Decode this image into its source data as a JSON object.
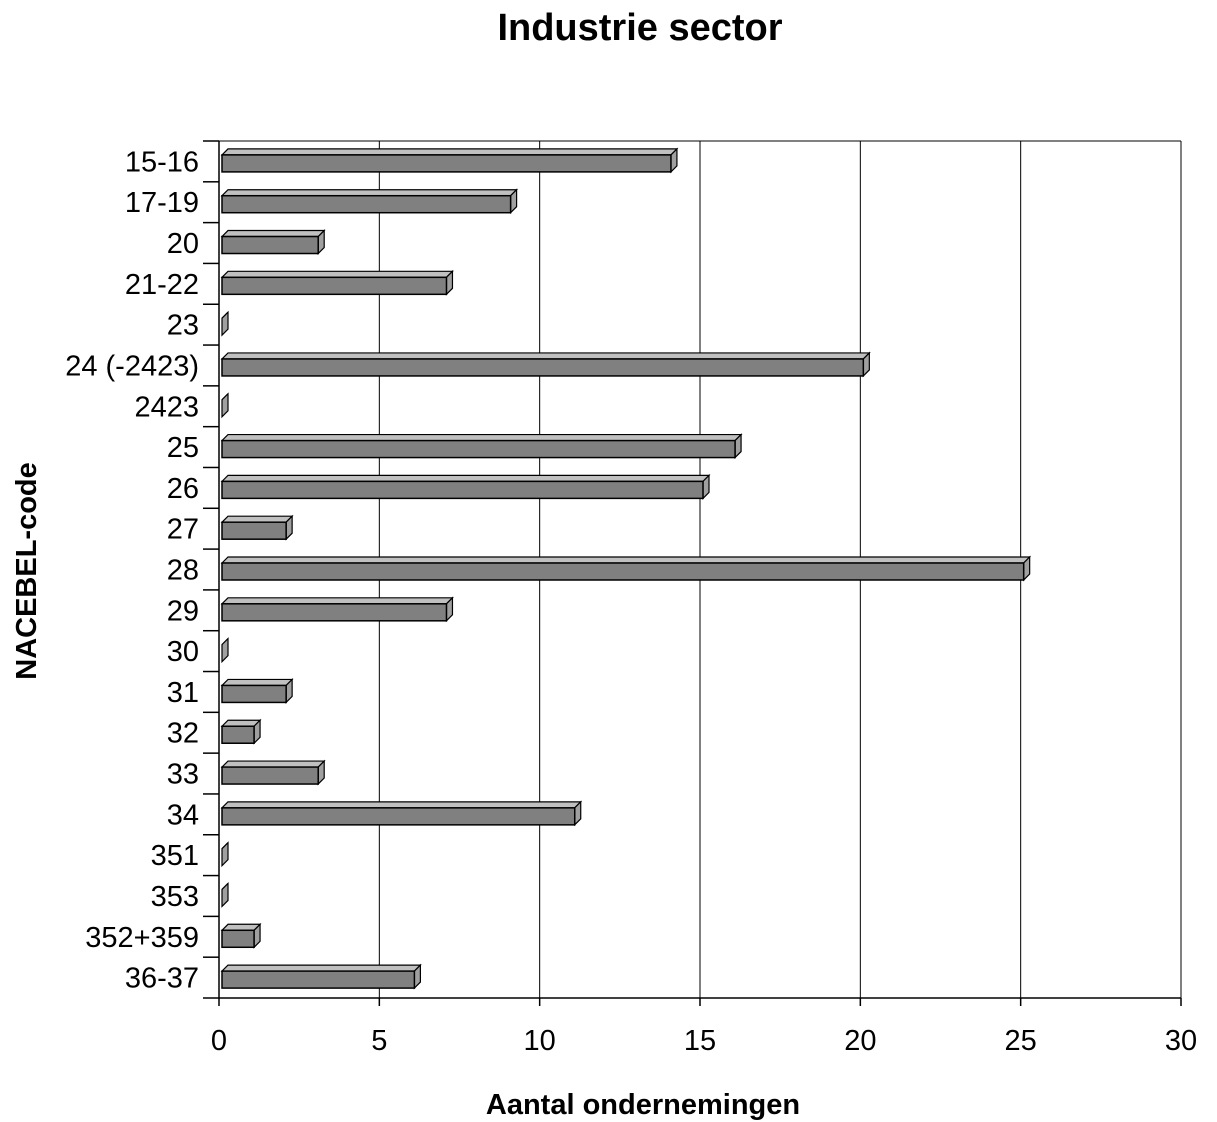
{
  "chart_data": {
    "type": "bar",
    "orientation": "horizontal",
    "title": "Industrie sector",
    "xlabel": "Aantal ondernemingen",
    "ylabel": "NACEBEL-code",
    "xlim": [
      0,
      30
    ],
    "xticks": [
      0,
      5,
      10,
      15,
      20,
      25,
      30
    ],
    "grid": "vertical",
    "bar_color": "#808080",
    "categories": [
      "15-16",
      "17-19",
      "20",
      "21-22",
      "23",
      "24 (-2423)",
      "2423",
      "25",
      "26",
      "27",
      "28",
      "29",
      "30",
      "31",
      "32",
      "33",
      "34",
      "351",
      "353",
      "352+359",
      "36-37"
    ],
    "values": [
      14,
      9,
      3,
      7,
      0,
      20,
      0,
      16,
      15,
      2,
      25,
      7,
      0,
      2,
      1,
      3,
      11,
      0,
      0,
      1,
      6
    ]
  }
}
